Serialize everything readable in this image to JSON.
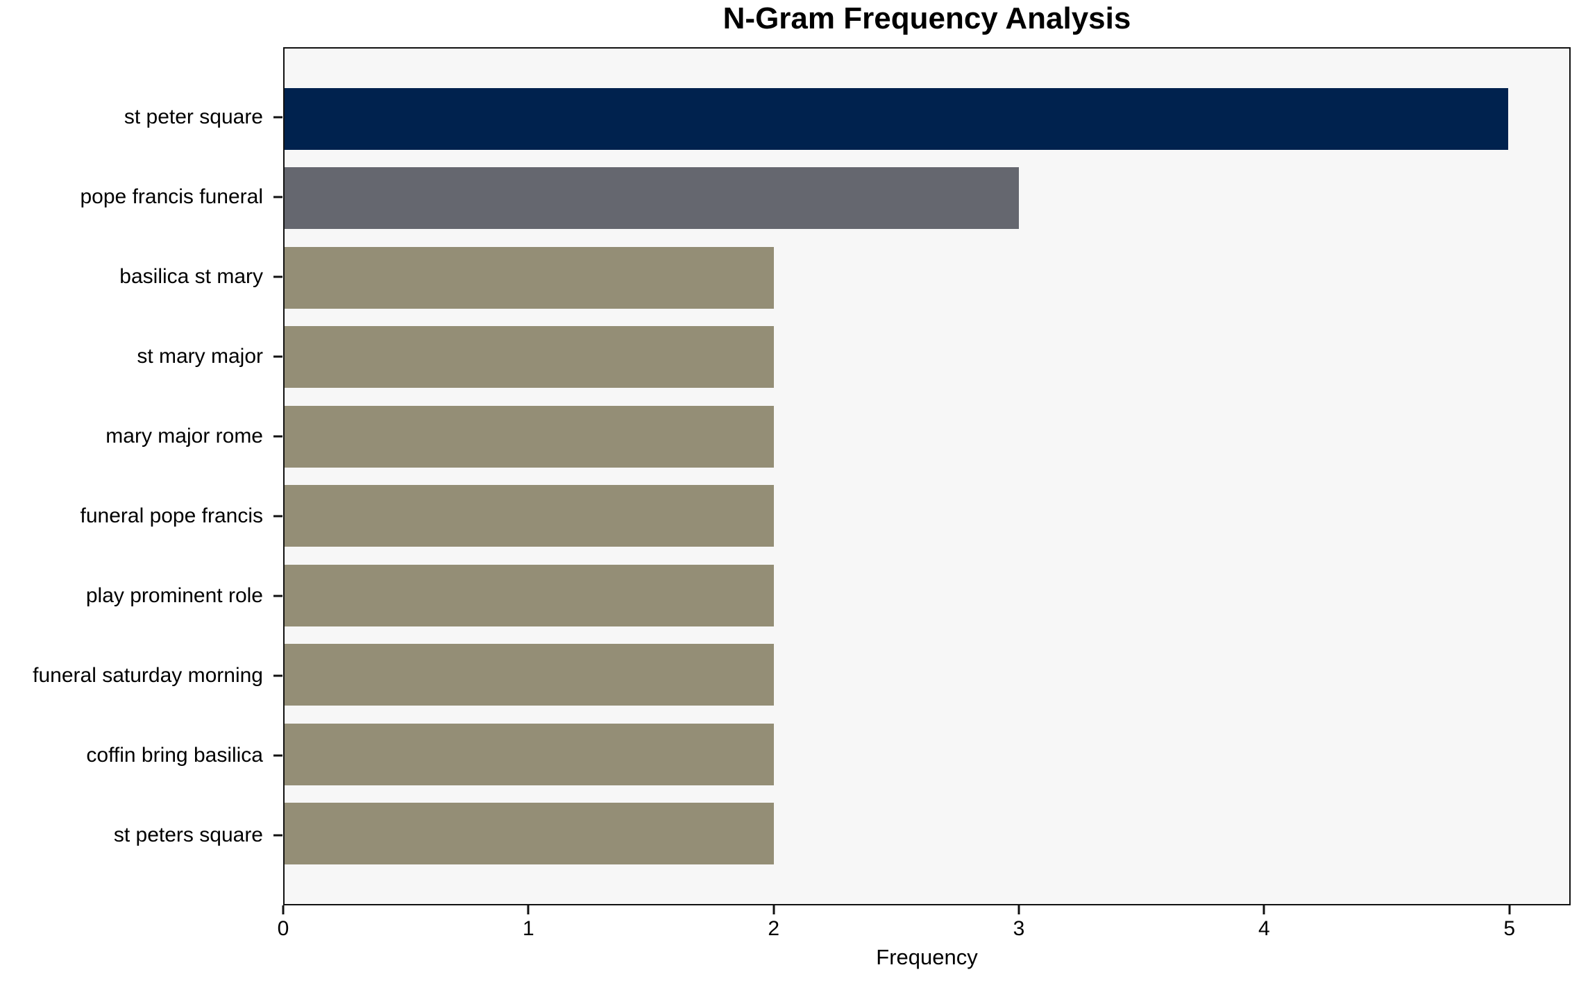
{
  "figure": {
    "background_color": "#ffffff",
    "plot_background_color": "#f7f7f7",
    "spine_color": "#111111",
    "text_color": "#000000"
  },
  "chart_data": {
    "type": "bar",
    "orientation": "horizontal",
    "title": "N-Gram Frequency Analysis",
    "xlabel": "Frequency",
    "ylabel": "",
    "categories": [
      "st peter square",
      "pope francis funeral",
      "basilica st mary",
      "st mary major",
      "mary major rome",
      "funeral pope francis",
      "play prominent role",
      "funeral saturday morning",
      "coffin bring basilica",
      "st peters square"
    ],
    "values": [
      5,
      3,
      2,
      2,
      2,
      2,
      2,
      2,
      2,
      2
    ],
    "bar_colors": [
      "#00224e",
      "#65676f",
      "#948e76",
      "#948e76",
      "#948e76",
      "#948e76",
      "#948e76",
      "#948e76",
      "#948e76",
      "#948e76"
    ],
    "x_ticks": [
      0,
      1,
      2,
      3,
      4,
      5
    ],
    "xlim": [
      0,
      5.25
    ],
    "grid": false,
    "legend_position": "none"
  }
}
